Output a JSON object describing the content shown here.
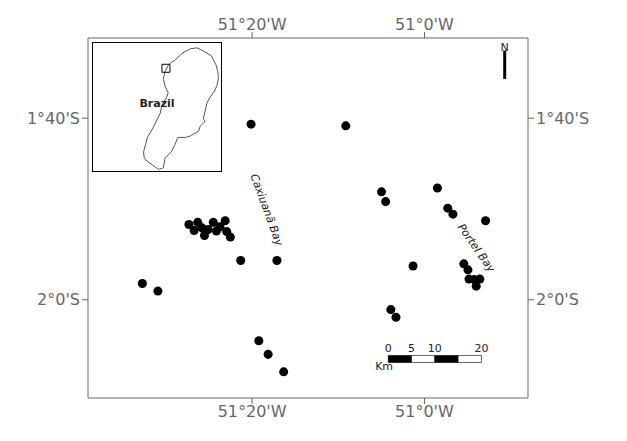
{
  "chart_data": [
    {
      "type": "scatter",
      "x": [
        -51.545,
        -51.515,
        -51.455,
        -51.445,
        -51.438,
        -51.43,
        -51.425,
        -51.418,
        -51.408,
        -51.402,
        -51.395,
        -51.385,
        -51.382,
        -51.375,
        -51.355,
        -51.335,
        -51.285,
        -51.152,
        -51.083,
        -51.075,
        -51.022,
        -50.975,
        -50.955,
        -50.945,
        -50.924,
        -50.916,
        -50.914,
        -50.904,
        -50.9,
        -50.893,
        -50.882,
        -51.055,
        -51.065,
        -51.32,
        -51.302,
        -51.272
      ],
      "values": [
        -1.97,
        -1.984,
        -1.862,
        -1.873,
        -1.858,
        -1.868,
        -1.882,
        -1.871,
        -1.858,
        -1.874,
        -1.866,
        -1.855,
        -1.875,
        -1.885,
        -1.928,
        -1.678,
        -1.928,
        -1.681,
        -1.802,
        -1.82,
        -1.938,
        -1.795,
        -1.832,
        -1.843,
        -1.934,
        -1.945,
        -1.962,
        -1.963,
        -1.975,
        -1.962,
        -1.855,
        -2.032,
        -2.018,
        -2.075,
        -2.1,
        -2.132
      ],
      "color": "#000000",
      "xlim": [
        -51.65,
        -50.8
      ],
      "ylim": [
        -2.18,
        -1.52
      ],
      "xticks": [
        {
          "value": -51.333,
          "label": "51°20'W"
        },
        {
          "value": -51.0,
          "label": "51°0'W"
        }
      ],
      "yticks": [
        {
          "value": -1.667,
          "label": "1°40'S"
        },
        {
          "value": -2.0,
          "label": "2°0'S"
        }
      ],
      "grid": false,
      "annotations": [
        {
          "text": "Caxiuanã Bay",
          "x": -51.305,
          "y": -1.835,
          "rotate": true
        },
        {
          "text": "Portel Bay",
          "x": -50.9,
          "y": -1.905,
          "rotate": true
        },
        {
          "text": "N",
          "x": -50.845,
          "y": -1.538
        },
        {
          "text": "Km",
          "x": -51.078,
          "y": -2.123
        }
      ],
      "scalebar": {
        "segments": [
          -51.07,
          -51.025,
          -50.98,
          -50.935,
          -50.89
        ],
        "y": [
          -2.115,
          -2.102
        ],
        "labels": [
          {
            "value": -51.07,
            "label": "0"
          },
          {
            "value": -51.025,
            "label": "5"
          },
          {
            "value": -50.98,
            "label": "10"
          },
          {
            "value": -50.89,
            "label": "20"
          }
        ],
        "label_y": -2.095
      },
      "north_arrow": [
        [
          -50.845,
          -1.595
        ],
        [
          -50.845,
          -1.543
        ]
      ]
    },
    {
      "type": "inset",
      "outline": [
        [
          -48.5,
          0.5
        ],
        [
          -47.0,
          2.0
        ],
        [
          -45.5,
          3.2
        ],
        [
          -43.5,
          4.2
        ],
        [
          -41.5,
          4.5
        ],
        [
          -39.5,
          3.5
        ],
        [
          -37.0,
          2.0
        ],
        [
          -35.5,
          -1.0
        ],
        [
          -35.0,
          -3.0
        ],
        [
          -34.8,
          -5.0
        ],
        [
          -35.2,
          -7.0
        ],
        [
          -36.0,
          -9.0
        ],
        [
          -37.5,
          -11.0
        ],
        [
          -38.5,
          -13.0
        ],
        [
          -39.0,
          -15.5
        ],
        [
          -39.5,
          -17.5
        ],
        [
          -39.0,
          -18.5
        ],
        [
          -40.5,
          -20.0
        ],
        [
          -41.0,
          -21.5
        ],
        [
          -43.5,
          -23.0
        ],
        [
          -45.0,
          -23.5
        ],
        [
          -47.5,
          -23.5
        ],
        [
          -48.5,
          -26.0
        ],
        [
          -48.8,
          -26.5
        ],
        [
          -49.5,
          -28.0
        ],
        [
          -51.0,
          -29.5
        ],
        [
          -51.5,
          -30.0
        ],
        [
          -52.0,
          -33.0
        ],
        [
          -53.5,
          -33.5
        ],
        [
          -53.5,
          -33.5
        ],
        [
          -57.0,
          -31.0
        ],
        [
          -58.0,
          -30.0
        ],
        [
          -58.2,
          -28.0
        ],
        [
          -57.5,
          -25.5
        ],
        [
          -57.0,
          -23.5
        ],
        [
          -55.5,
          -21.0
        ],
        [
          -55.0,
          -20.0
        ],
        [
          -54.0,
          -18.0
        ],
        [
          -53.0,
          -16.0
        ],
        [
          -52.5,
          -13.5
        ],
        [
          -51.0,
          -11.0
        ],
        [
          -50.5,
          -9.5
        ],
        [
          -51.5,
          -7.5
        ],
        [
          -52.0,
          -5.0
        ],
        [
          -51.5,
          -3.0
        ],
        [
          -50.5,
          -1.0
        ],
        [
          -49.5,
          0.0
        ],
        [
          -48.5,
          0.5
        ]
      ],
      "study_point": [
        -51.2,
        -1.9
      ],
      "marker": "square",
      "xlim": [
        -74,
        -34
      ],
      "ylim": [
        -34,
        6
      ],
      "tick_labels": false,
      "annotations": [
        {
          "text": "Brazil",
          "x": -54,
          "y": -13
        }
      ]
    }
  ]
}
